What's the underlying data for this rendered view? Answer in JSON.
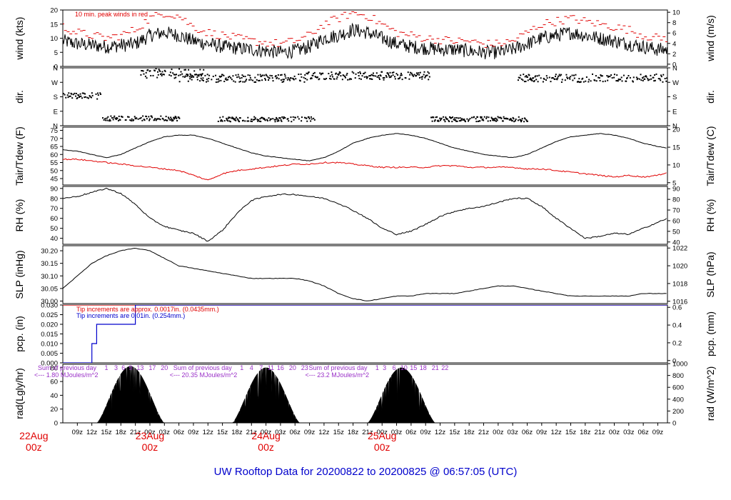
{
  "footer": {
    "title": "UW Rooftop Data for 20200822  to  20200825 @ 06:57:05  (UTC)"
  },
  "chart_data": [
    {
      "type": "line",
      "id": "wind",
      "ylabel": "wind (kts)",
      "ylabel_right": "wind (m/s)",
      "ylim": [
        0,
        20
      ],
      "yticks": [
        0,
        5,
        10,
        15,
        20
      ],
      "yticks_right": [
        0,
        2,
        4,
        6,
        8,
        10
      ],
      "annotation": "10 min. peak winds in red",
      "series": [
        {
          "role": "mean",
          "color": "#000000",
          "x": [
            6,
            9,
            12,
            15,
            18,
            21,
            24,
            27,
            30,
            33,
            36,
            39,
            42,
            45,
            48,
            51,
            54,
            57,
            60,
            63,
            66,
            69,
            72,
            75,
            78,
            81,
            84,
            87,
            90,
            93,
            96,
            99,
            102,
            105,
            108,
            111,
            114,
            117,
            120,
            123,
            126,
            129,
            131
          ],
          "values": [
            9,
            8,
            7.5,
            7,
            7.5,
            8,
            11,
            12,
            11,
            9,
            8,
            7,
            6.5,
            6,
            5.5,
            5,
            5.5,
            7,
            10,
            11,
            13,
            12,
            10,
            8,
            7,
            6.5,
            6,
            6,
            5.5,
            5,
            5,
            6,
            8,
            10,
            11,
            12,
            11,
            10,
            9,
            8,
            7,
            6,
            6
          ]
        },
        {
          "role": "peak",
          "color": "#e00000",
          "x": [
            6,
            9,
            12,
            15,
            18,
            21,
            24,
            27,
            30,
            33,
            36,
            39,
            42,
            45,
            48,
            51,
            54,
            57,
            60,
            63,
            66,
            69,
            72,
            75,
            78,
            81,
            84,
            87,
            90,
            93,
            96,
            99,
            102,
            105,
            108,
            111,
            114,
            117,
            120,
            123,
            126,
            129,
            131
          ],
          "values": [
            14,
            12,
            11,
            10,
            11,
            13,
            17,
            19,
            18,
            14,
            12,
            11,
            10,
            9,
            8.5,
            8,
            9,
            11,
            15,
            17,
            19,
            18,
            15,
            12,
            11,
            10,
            9.5,
            9,
            9,
            8,
            8,
            9,
            12,
            15,
            16,
            17,
            16,
            15,
            14,
            13,
            11,
            10,
            10
          ]
        }
      ]
    },
    {
      "type": "scatter",
      "id": "dir",
      "ylabel": "dir.",
      "ylabel_right": "dir.",
      "yticks": [
        "N",
        "E",
        "S",
        "W",
        "N"
      ],
      "yticks_right": [
        "N",
        "E",
        "S",
        "W",
        "N"
      ],
      "y_values_deg": [
        0,
        90,
        180,
        270,
        360
      ],
      "ylim": [
        0,
        360
      ],
      "clusters": [
        {
          "x_from": 6,
          "x_to": 14,
          "deg": 190,
          "spread": 20
        },
        {
          "x_from": 14,
          "x_to": 30,
          "deg": 50,
          "spread": 15
        },
        {
          "x_from": 22,
          "x_to": 35,
          "deg": 330,
          "spread": 30
        },
        {
          "x_from": 30,
          "x_to": 56,
          "deg": 300,
          "spread": 25
        },
        {
          "x_from": 38,
          "x_to": 58,
          "deg": 45,
          "spread": 15
        },
        {
          "x_from": 56,
          "x_to": 82,
          "deg": 315,
          "spread": 25
        },
        {
          "x_from": 82,
          "x_to": 102,
          "deg": 45,
          "spread": 15
        },
        {
          "x_from": 100,
          "x_to": 131,
          "deg": 300,
          "spread": 25
        }
      ]
    },
    {
      "type": "line",
      "id": "temp",
      "ylabel": "Tair/Tdew (F)",
      "ylabel_right": "Tair/Tdew (C)",
      "ylim": [
        41.0,
        77.0
      ],
      "yticks": [
        45,
        50,
        55,
        60,
        65,
        70,
        75
      ],
      "yticks_right": [
        5,
        10,
        15,
        20
      ],
      "series": [
        {
          "role": "air",
          "color": "#000000",
          "x": [
            6,
            9,
            12,
            15,
            18,
            21,
            24,
            27,
            30,
            33,
            36,
            39,
            42,
            45,
            48,
            51,
            54,
            57,
            60,
            63,
            66,
            69,
            72,
            75,
            78,
            81,
            84,
            87,
            90,
            93,
            96,
            99,
            102,
            105,
            108,
            111,
            114,
            117,
            120,
            123,
            126,
            129,
            131
          ],
          "values": [
            63,
            62,
            60,
            58,
            60,
            64,
            68,
            71,
            72,
            72,
            70,
            67,
            64,
            61,
            59,
            58,
            57,
            56,
            58,
            62,
            67,
            70,
            72,
            73,
            72,
            70,
            67,
            64,
            62,
            60,
            59,
            58,
            60,
            64,
            68,
            71,
            72,
            73,
            72,
            70,
            67,
            65,
            64
          ]
        },
        {
          "role": "dew",
          "color": "#e00000",
          "x": [
            6,
            9,
            12,
            15,
            18,
            21,
            24,
            27,
            30,
            33,
            36,
            39,
            42,
            45,
            48,
            51,
            54,
            57,
            60,
            63,
            66,
            69,
            72,
            75,
            78,
            81,
            84,
            87,
            90,
            93,
            96,
            99,
            102,
            105,
            108,
            111,
            114,
            117,
            120,
            123,
            126,
            129,
            131
          ],
          "values": [
            57,
            57,
            56,
            55,
            54,
            53,
            52,
            51,
            50,
            47,
            44,
            48,
            50,
            51,
            52,
            53,
            54,
            54,
            55,
            55,
            54,
            53,
            52,
            52,
            52,
            52,
            53,
            53,
            52,
            52,
            52,
            52,
            51,
            51,
            50,
            49,
            48,
            47,
            46,
            47,
            46,
            47,
            49
          ]
        }
      ]
    },
    {
      "type": "line",
      "id": "rh",
      "ylabel": "RH (%)",
      "ylabel_right": "RH (%)",
      "ylim": [
        34,
        92
      ],
      "yticks": [
        40,
        50,
        60,
        70,
        80,
        90
      ],
      "yticks_right": [
        40,
        50,
        60,
        70,
        80,
        90
      ],
      "series": [
        {
          "role": "rh",
          "color": "#000000",
          "x": [
            6,
            9,
            12,
            15,
            18,
            21,
            24,
            27,
            30,
            33,
            36,
            39,
            42,
            45,
            48,
            51,
            54,
            57,
            60,
            63,
            66,
            69,
            72,
            75,
            78,
            81,
            84,
            87,
            90,
            93,
            96,
            99,
            102,
            105,
            108,
            111,
            114,
            117,
            120,
            123,
            126,
            129,
            131
          ],
          "values": [
            80,
            82,
            86,
            90,
            85,
            74,
            60,
            52,
            48,
            45,
            37,
            48,
            65,
            78,
            82,
            84,
            84,
            82,
            80,
            75,
            68,
            60,
            50,
            44,
            47,
            54,
            62,
            67,
            70,
            72,
            76,
            80,
            80,
            72,
            60,
            50,
            40,
            42,
            45,
            44,
            50,
            56,
            60
          ]
        }
      ]
    },
    {
      "type": "line",
      "id": "slp",
      "ylabel": "SLP (inHg)",
      "ylabel_right": "SLP (hPa)",
      "ylim": [
        29.99,
        30.22
      ],
      "yticks": [
        30.0,
        30.05,
        30.1,
        30.15,
        30.2
      ],
      "ytick_labels": [
        "30.00",
        "30.05",
        "30.10",
        "30.15",
        "30.20"
      ],
      "yticks_right": [
        1016,
        1018,
        1020,
        1022
      ],
      "series": [
        {
          "role": "slp",
          "color": "#000000",
          "x": [
            6,
            9,
            12,
            15,
            18,
            21,
            24,
            27,
            30,
            33,
            36,
            39,
            42,
            45,
            48,
            51,
            54,
            57,
            60,
            63,
            66,
            69,
            72,
            75,
            78,
            81,
            84,
            87,
            90,
            93,
            96,
            99,
            102,
            105,
            108,
            111,
            114,
            117,
            120,
            123,
            126,
            129,
            131
          ],
          "values": [
            30.05,
            30.1,
            30.15,
            30.18,
            30.2,
            30.21,
            30.2,
            30.17,
            30.14,
            30.13,
            30.12,
            30.11,
            30.1,
            30.09,
            30.09,
            30.09,
            30.09,
            30.08,
            30.06,
            30.03,
            30.01,
            30.0,
            30.01,
            30.02,
            30.02,
            30.03,
            30.03,
            30.03,
            30.04,
            30.05,
            30.06,
            30.06,
            30.05,
            30.04,
            30.03,
            30.02,
            30.02,
            30.02,
            30.02,
            30.02,
            30.03,
            30.03,
            30.03
          ]
        }
      ]
    },
    {
      "type": "line",
      "id": "pcp",
      "ylabel": "pcp. (in)",
      "ylabel_right": "pcp. (mm)",
      "ylim": [
        0,
        0.03
      ],
      "yticks": [
        0,
        0.005,
        0.01,
        0.015,
        0.02,
        0.025,
        0.03
      ],
      "ytick_labels": [
        "0.000",
        "0.005",
        "0.010",
        "0.015",
        "0.020",
        "0.025",
        "0.030"
      ],
      "yticks_right": [
        0,
        0.2,
        0.4,
        0.6
      ],
      "annotations": [
        "Tip increments are approx. 0.0017in. (0.0435mm.)",
        "Tip increments are 0.01in. (0.254mm.)"
      ],
      "series": [
        {
          "role": "accum-fine",
          "color": "#e00000",
          "x": [
            6,
            131
          ],
          "values": [
            0.03,
            0.03
          ]
        },
        {
          "role": "accum-tip",
          "color": "#0000cc",
          "x": [
            6,
            12,
            12,
            13,
            13,
            21,
            21,
            131
          ],
          "values": [
            0,
            0,
            0.01,
            0.01,
            0.02,
            0.02,
            0.03,
            0.03
          ]
        }
      ]
    },
    {
      "type": "area",
      "id": "rad",
      "ylabel": "rad(Lgly/hr)",
      "ylabel_right": "rad (W/m^2)",
      "ylim": [
        0,
        85
      ],
      "yticks": [
        0,
        20,
        40,
        60,
        80
      ],
      "yticks_right": [
        0,
        200,
        400,
        600,
        800,
        1000
      ],
      "yticks_right_vals": [
        0,
        17.2,
        34.4,
        51.6,
        68.8,
        86
      ],
      "days": [
        {
          "x_from": 13,
          "x_to": 27,
          "peak": 82,
          "peak_x": 19.5
        },
        {
          "x_from": 41,
          "x_to": 55,
          "peak": 80,
          "peak_x": 48
        },
        {
          "x_from": 69,
          "x_to": 83,
          "peak": 80,
          "peak_x": 76
        }
      ],
      "daily_notes": [
        {
          "text": "Sum of previous day",
          "text2": "<--- 1.80 MJoules/m^2",
          "x": 6
        },
        {
          "text": "Sum of previous day",
          "text2": "<--- 20.35 MJoules/m^2",
          "x": 34
        },
        {
          "text": "Sum of previous day",
          "text2": "<--- 23.2 MJoules/m^2",
          "x": 62
        }
      ],
      "hour_marks": [
        {
          "day": 0,
          "labels": [
            "1",
            "3",
            "6",
            "9",
            "13",
            "17",
            "20"
          ],
          "x": [
            15,
            17,
            18.5,
            20,
            22,
            24.5,
            27
          ]
        },
        {
          "day": 1,
          "labels": [
            "1",
            "4",
            "7",
            "11",
            "16",
            "20",
            "23"
          ],
          "x": [
            43,
            45,
            47,
            49,
            51,
            53.5,
            56
          ]
        },
        {
          "day": 2,
          "labels": [
            "1",
            "3",
            "6",
            "10",
            "15",
            "18",
            "21",
            "22"
          ],
          "x": [
            71,
            72.5,
            74.5,
            76.5,
            78.5,
            80.5,
            83,
            85
          ]
        }
      ]
    }
  ],
  "time_axis": {
    "x_start": 6,
    "x_end": 131,
    "tick_values": [
      9,
      12,
      15,
      18,
      21,
      24,
      27,
      30,
      33,
      36,
      39,
      42,
      45,
      48,
      51,
      54,
      57,
      60,
      63,
      66,
      69,
      72,
      75,
      78,
      81,
      84,
      87,
      90,
      93,
      96,
      99,
      102,
      105,
      108,
      111,
      114,
      117,
      120,
      123,
      126,
      129
    ],
    "tick_labels": [
      "09z",
      "12z",
      "15z",
      "18z",
      "21z",
      "00z",
      "03z",
      "06z",
      "09z",
      "12z",
      "15z",
      "18z",
      "21z",
      "00z",
      "03z",
      "06z",
      "09z",
      "12z",
      "15z",
      "18z",
      "21z",
      "00z",
      "03z",
      "06z",
      "09z",
      "12z",
      "15z",
      "18z",
      "21z",
      "00z",
      "03z",
      "06z",
      "09z",
      "12z",
      "15z",
      "18z",
      "21z",
      "00z",
      "03z",
      "06z",
      "09z"
    ],
    "day_labels": [
      {
        "x": 0,
        "line1": "22Aug",
        "line2": "00z"
      },
      {
        "x": 24,
        "line1": "23Aug",
        "line2": "00z"
      },
      {
        "x": 48,
        "line1": "24Aug",
        "line2": "00z"
      },
      {
        "x": 72,
        "line1": "25Aug",
        "line2": "00z"
      }
    ]
  }
}
